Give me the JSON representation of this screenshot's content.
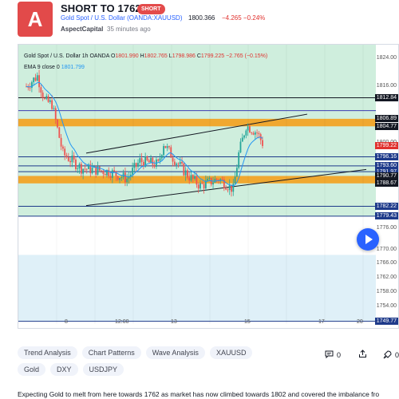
{
  "post": {
    "avatar_letter": "A",
    "title": "SHORT TO 1762",
    "badge": "SHORT",
    "symbol_link": "Gold Spot / U.S. Dollar (OANDA:XAUUSD)",
    "symbol_price": "1800.366",
    "symbol_change": "−4.265  −0.24%",
    "author": "AspectCapital",
    "time": "35 minutes ago"
  },
  "chart": {
    "legend_name": "Gold Spot / U.S. Dollar  1h  OANDA",
    "legend_ohlc": [
      {
        "k": "O",
        "v": "1801.990"
      },
      {
        "k": "H",
        "v": "1802.765"
      },
      {
        "k": "L",
        "v": "1798.986"
      },
      {
        "k": "C",
        "v": "1799.225"
      }
    ],
    "legend_change": "−2.765 (−0.15%)",
    "ema_label": "EMA 9 close 0",
    "ema_value": "1801.799",
    "y_range": [
      1749,
      1826
    ],
    "scale_labels": [
      "1824.00",
      "1816.00",
      "1800.00",
      "1776.00",
      "1770.00",
      "1766.00",
      "1762.00",
      "1758.00",
      "1754.00"
    ],
    "price_tags": [
      {
        "label": "1812.84",
        "price": 1812.84,
        "color": "#131722"
      },
      {
        "label": "1806.89",
        "price": 1806.89,
        "color": "#131722"
      },
      {
        "label": "1804.77",
        "price": 1804.77,
        "color": "#131722"
      },
      {
        "label": "1799.22",
        "price": 1799.22,
        "color": "#e0312e"
      },
      {
        "label": "1796.16",
        "price": 1796.16,
        "color": "#1e3a8a"
      },
      {
        "label": "1793.60",
        "price": 1793.6,
        "color": "#1e3a8a"
      },
      {
        "label": "1791.97",
        "price": 1791.97,
        "color": "#1e3a8a"
      },
      {
        "label": "1790.77",
        "price": 1790.77,
        "color": "#131722"
      },
      {
        "label": "1788.67",
        "price": 1788.67,
        "color": "#131722"
      },
      {
        "label": "1782.22",
        "price": 1782.22,
        "color": "#1e3a8a"
      },
      {
        "label": "1779.43",
        "price": 1779.43,
        "color": "#1e3a8a"
      },
      {
        "label": "1749.77",
        "price": 1749.77,
        "color": "#1e3a8a"
      }
    ],
    "time_labels": [
      "8",
      "12:00",
      "13",
      "15",
      "17",
      "20"
    ],
    "colors": {
      "up": "#26a69a",
      "down": "#ef5350",
      "ema": "#2196f3",
      "zone": "#f0a830",
      "band_green": "#cfeedd",
      "band_blue": "#dff0f8"
    }
  },
  "tags": {
    "row1": [
      "Trend Analysis",
      "Chart Patterns",
      "Wave Analysis",
      "XAUUSD"
    ],
    "row2": [
      "Gold",
      "DXY",
      "USDJPY"
    ]
  },
  "actions": {
    "comments": "0",
    "boosts": "0"
  },
  "description": "Expecting Gold to melt from here towards 1762 as market has now climbed towards 1802 and covered the imbalance fro"
}
